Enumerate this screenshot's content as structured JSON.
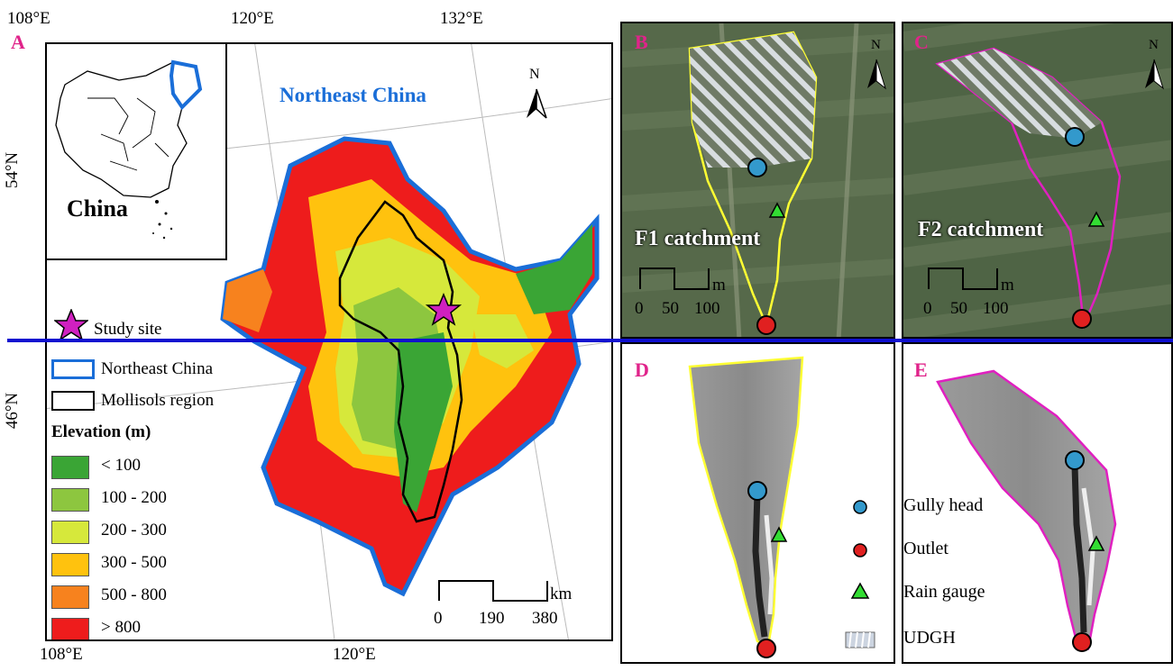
{
  "coords": {
    "top_lon": [
      "108°E",
      "120°E",
      "132°E"
    ],
    "bottom_lon": [
      "108°E",
      "120°E"
    ],
    "lat": [
      "54°N",
      "46°N"
    ]
  },
  "panels": {
    "a": "A",
    "b": "B",
    "c": "C",
    "d": "D",
    "e": "E"
  },
  "map_a": {
    "region_title": "Northeast China",
    "inset_title": "China",
    "north": "N",
    "study_site": "Study site",
    "legend_boundary": [
      "Northeast China",
      "Mollisols region"
    ],
    "elevation_title": "Elevation (m)",
    "elevation_classes": [
      {
        "label": "< 100",
        "color": "#3aa535"
      },
      {
        "label": "100 - 200",
        "color": "#8dc63f"
      },
      {
        "label": "200 - 300",
        "color": "#d6e83b"
      },
      {
        "label": "300 - 500",
        "color": "#ffc20e"
      },
      {
        "label": "500 - 800",
        "color": "#f7821e"
      },
      {
        "label": "> 800",
        "color": "#ee1c1c"
      }
    ],
    "scale_unit": "km",
    "scale_ticks": [
      "0",
      "190",
      "380"
    ]
  },
  "catchments": {
    "f1": "F1 catchment",
    "f2": "F2 catchment",
    "north": "N",
    "scale_unit": "m",
    "scale_ticks": [
      "0",
      "50",
      "100"
    ]
  },
  "legend_de": [
    "Gully head",
    "Outlet",
    "Rain gauge",
    "UDGH"
  ],
  "colors": {
    "f1_boundary": "#ffff33",
    "f2_boundary": "#e020c0",
    "gully_head": "#3399cc",
    "outlet": "#e02020",
    "rain_gauge": "#33dd33",
    "ne_border": "#1a6ed8"
  }
}
